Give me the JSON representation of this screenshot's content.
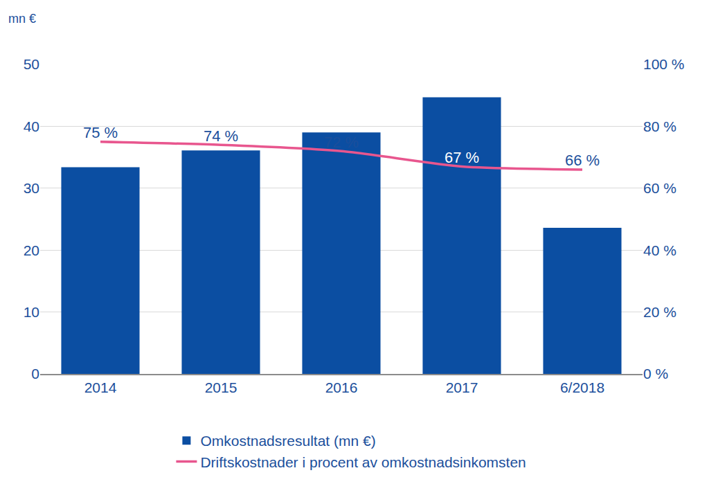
{
  "chart_data": {
    "type": "bar",
    "y_label": "mn €",
    "categories": [
      "2014",
      "2015",
      "2016",
      "2017",
      "6/2018"
    ],
    "series": [
      {
        "name": "Omkostnadsresultat (mn €)",
        "type": "bar",
        "color": "#0b4ea2",
        "values": [
          33.4,
          36.1,
          39.0,
          44.7,
          23.6
        ]
      },
      {
        "name": "Driftskostnader i procent av omkostnadsinkomsten",
        "type": "line",
        "axis": "y2",
        "color": "#e8568e",
        "values": [
          75,
          74,
          72,
          67,
          66
        ],
        "value_labels": [
          "75 %",
          "74 %",
          "72 %",
          "67 %",
          "66 %"
        ]
      }
    ],
    "ylim": [
      0,
      50
    ],
    "yticks": [
      0,
      10,
      20,
      30,
      40,
      50
    ],
    "y2lim": [
      0,
      100
    ],
    "y2ticks": [
      {
        "value": 0,
        "label": "0 %"
      },
      {
        "value": 20,
        "label": "20 %"
      },
      {
        "value": 40,
        "label": "40 %"
      },
      {
        "value": 60,
        "label": "60 %"
      },
      {
        "value": 80,
        "label": "80 %"
      },
      {
        "value": 100,
        "label": "100 %"
      }
    ],
    "grid": true,
    "legend": "bottom",
    "data_labels": true
  }
}
